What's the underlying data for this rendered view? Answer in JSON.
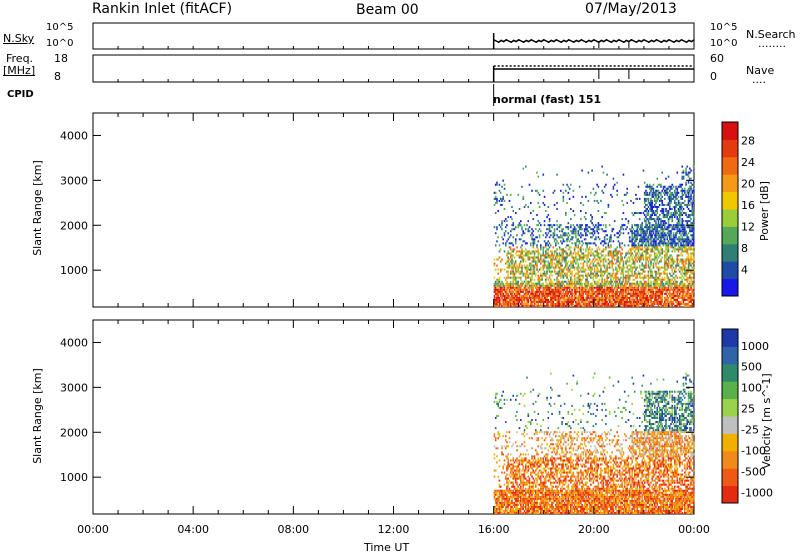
{
  "header": {
    "title": "Rankin Inlet (fitACF)",
    "beam": "Beam 00",
    "date": "07/May/2013"
  },
  "noise_panel": {
    "left_label": "N.Sky",
    "right_label": "N.Search",
    "left_ticks": [
      "10^5",
      "10^0"
    ],
    "right_ticks": [
      "10^5",
      "10^0"
    ],
    "right_dotted": "........"
  },
  "freq_panel": {
    "left_label_1": "Freq.",
    "left_label_2": "[MHz]",
    "left_ticks": [
      "18",
      "8"
    ],
    "right_label": "Nave",
    "right_ticks": [
      "60",
      "0"
    ],
    "right_dotted": "...."
  },
  "cpid": {
    "label": "CPID",
    "mode": "normal (fast) 151"
  },
  "chart_data": [
    {
      "type": "heatmap",
      "name": "power",
      "ylabel": "Slant Range [km]",
      "ylim": [
        180,
        4500
      ],
      "yticks": [
        "1000",
        "2000",
        "3000",
        "4000"
      ],
      "colorbar_label": "Power [dB]",
      "colorbar_ticks": [
        "4",
        "8",
        "12",
        "16",
        "20",
        "24",
        "28"
      ],
      "colors": [
        "#1818e8",
        "#1f4ba8",
        "#2f7f74",
        "#55a85a",
        "#9acd3a",
        "#f0c800",
        "#f59a18",
        "#ef6a12",
        "#e43a10",
        "#d81010"
      ],
      "xlim_hours": [
        0,
        24
      ],
      "data_start_hour": 16
    },
    {
      "type": "heatmap",
      "name": "velocity",
      "ylabel": "Slant Range [km]",
      "ylim": [
        180,
        4500
      ],
      "yticks": [
        "1000",
        "2000",
        "3000",
        "4000"
      ],
      "colorbar_label": "Velocity [m s^-1]",
      "colorbar_ticks": [
        "1000",
        "500",
        "100",
        "25",
        "-25",
        "-100",
        "-500",
        "-1000"
      ],
      "colors": [
        "#1d3aa8",
        "#2f65a8",
        "#2f8a6a",
        "#5ab04a",
        "#9ad24a",
        "#bfbfbf",
        "#f0b000",
        "#f28a1a",
        "#ee5a14",
        "#e42a10"
      ],
      "xlim_hours": [
        0,
        24
      ],
      "data_start_hour": 16
    }
  ],
  "xaxis": {
    "ticks": [
      "00:00",
      "04:00",
      "08:00",
      "12:00",
      "16:00",
      "20:00",
      "00:00"
    ],
    "label": "Time UT"
  }
}
